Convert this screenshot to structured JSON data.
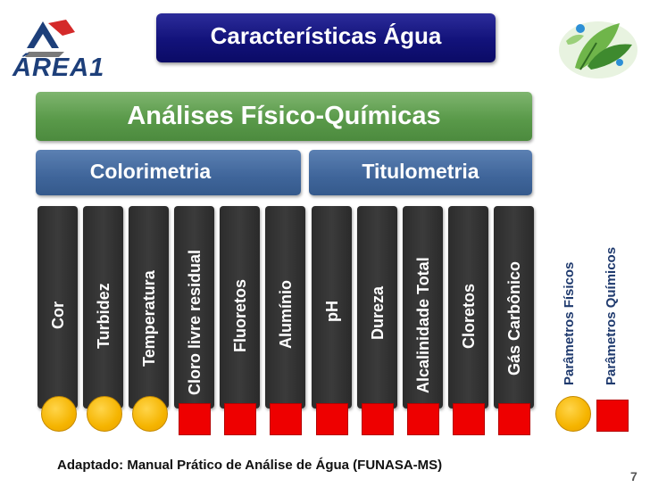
{
  "header": {
    "title": "Características Água",
    "logo_text": "ÁREA1"
  },
  "diagram": {
    "category": "Análises Físico-Químicas",
    "groups": [
      {
        "label": "Colorimetria"
      },
      {
        "label": "Titulometria"
      }
    ],
    "parameters": [
      {
        "label": "Cor",
        "type": "fisico"
      },
      {
        "label": "Turbidez",
        "type": "fisico"
      },
      {
        "label": "Temperatura",
        "type": "fisico"
      },
      {
        "label": "Cloro livre residual",
        "type": "quimico"
      },
      {
        "label": "Fluoretos",
        "type": "quimico"
      },
      {
        "label": "Alumínio",
        "type": "quimico"
      },
      {
        "label": "pH",
        "type": "quimico"
      },
      {
        "label": "Dureza",
        "type": "quimico"
      },
      {
        "label": "Alcalinidade Total",
        "type": "quimico"
      },
      {
        "label": "Cloretos",
        "type": "quimico"
      },
      {
        "label": "Gás Carbônico",
        "type": "quimico"
      }
    ],
    "legend": {
      "fisico": "Parâmetros Físicos",
      "quimico": "Parâmetros Químicos"
    }
  },
  "footer": {
    "source": "Adaptado: Manual Prático de Análise de Água (FUNASA-MS)",
    "page_number": "7"
  },
  "colors": {
    "fisico_marker": "#f5b400",
    "quimico_marker": "#ee0000",
    "title_bg": "#12127a",
    "category_bg": "#5a9a4a",
    "group_bg": "#3f659a",
    "column_bg": "#333333"
  }
}
